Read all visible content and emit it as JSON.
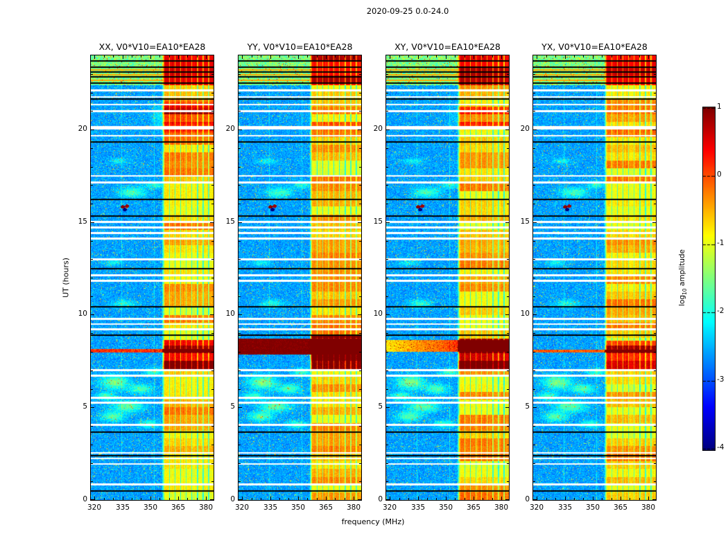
{
  "chart_data": {
    "type": "heatmap",
    "title": "2020-09-25 0.0-24.0",
    "xlabel": "frequency (MHz)",
    "ylabel": "UT (hours)",
    "value_label": "log10 amplitude",
    "value_label_parts": {
      "prefix": "log",
      "sub": "10",
      "suffix": " amplitude"
    },
    "colormap": "jet",
    "x_range": [
      318,
      384
    ],
    "y_range": [
      0,
      24
    ],
    "value_range": [
      -4,
      1
    ],
    "x_ticks": [
      320,
      335,
      350,
      365,
      380
    ],
    "y_ticks": [
      0,
      5,
      10,
      15,
      20
    ],
    "colorbar_ticks": [
      1,
      0,
      -1,
      -2,
      -3,
      -4
    ],
    "panels": [
      {
        "title": "XX, V0*V10=EA10*EA28",
        "burst": {
          "band": [
            7.05,
            8.65,
            1.7
          ],
          "full": [
            7.96,
            8.15,
            2.7
          ],
          "grad": 0
        },
        "sun_scale": 1.0
      },
      {
        "title": "YY, V0*V10=EA10*EA28",
        "burst": {
          "band": [
            6.95,
            8.85,
            1.9
          ],
          "full": [
            7.85,
            8.7,
            3.7
          ],
          "grad": 0
        },
        "sun_scale": 0.15
      },
      {
        "title": "XY, V0*V10=EA10*EA28",
        "burst": {
          "band": [
            7.05,
            8.7,
            1.8
          ],
          "full": [
            8.0,
            8.62,
            3.3
          ],
          "grad": 1
        },
        "sun_scale": 0.45
      },
      {
        "title": "YX, V0*V10=EA10*EA28",
        "burst": {
          "band": [
            7.05,
            8.6,
            1.5
          ],
          "full": [
            7.96,
            8.13,
            2.5
          ],
          "grad": 0
        },
        "sun_scale": 0.15
      }
    ],
    "features": {
      "rfi_band_mhz": [
        357,
        384
      ],
      "band_channel_gap_spacing_mhz": 3,
      "solar_burst_ut": 8.0,
      "bright_solar_region_xx_ut": [
        19.75,
        21.55
      ],
      "flare_spike_ut": 15.8,
      "white_gap_rows_ut": [
        22.1,
        21.76,
        21.34,
        21.0,
        19.66,
        17.5,
        17.15,
        15.02,
        14.7,
        14.4,
        14.1,
        13.0,
        12.12,
        11.82,
        9.78,
        9.5,
        9.22,
        7.0,
        6.72,
        5.52,
        5.24,
        4.06,
        2.54,
        2.24,
        1.94,
        0.84
      ],
      "wide_white_rows_ut": [
        20.1
      ],
      "black_rows_ut": [
        23.7,
        23.36,
        23.1,
        22.84,
        22.5,
        21.64,
        19.32,
        16.22,
        15.34,
        12.48,
        10.44,
        8.9,
        3.66,
        2.4,
        0.48
      ],
      "yellow_rows_ut": [
        23.22,
        22.95,
        22.66
      ],
      "wisps": [
        {
          "t": 6.35,
          "f": 331,
          "rt": 0.35,
          "rf": 7,
          "dv": 1.1
        },
        {
          "t": 6.0,
          "f": 345,
          "rt": 0.25,
          "rf": 6,
          "dv": 0.85
        },
        {
          "t": 5.05,
          "f": 338,
          "rt": 0.3,
          "rf": 8,
          "dv": 0.95
        },
        {
          "t": 4.5,
          "f": 330,
          "rt": 0.25,
          "rf": 6,
          "dv": 0.9
        },
        {
          "t": 4.1,
          "f": 349,
          "rt": 0.2,
          "rf": 5,
          "dv": 0.7
        },
        {
          "t": 6.9,
          "f": 352,
          "rt": 0.2,
          "rf": 5,
          "dv": 0.75
        },
        {
          "t": 5.6,
          "f": 326,
          "rt": 0.2,
          "rf": 5,
          "dv": 0.8
        },
        {
          "t": 16.6,
          "f": 340,
          "rt": 0.25,
          "rf": 7,
          "dv": 0.8
        },
        {
          "t": 17.0,
          "f": 352,
          "rt": 0.18,
          "rf": 5,
          "dv": 0.6
        },
        {
          "t": 10.6,
          "f": 336,
          "rt": 0.2,
          "rf": 6,
          "dv": 0.6
        },
        {
          "t": 18.3,
          "f": 333,
          "rt": 0.15,
          "rf": 5,
          "dv": 0.5
        },
        {
          "t": 12.8,
          "f": 330,
          "rt": 0.15,
          "rf": 5,
          "dv": 0.5
        }
      ],
      "flare_dots": [
        {
          "t": 15.82,
          "f": 335.2,
          "v": 0.95
        },
        {
          "t": 15.86,
          "f": 337.4,
          "v": 0.85
        },
        {
          "t": 15.67,
          "f": 336.3,
          "v": -4.0
        }
      ]
    }
  }
}
